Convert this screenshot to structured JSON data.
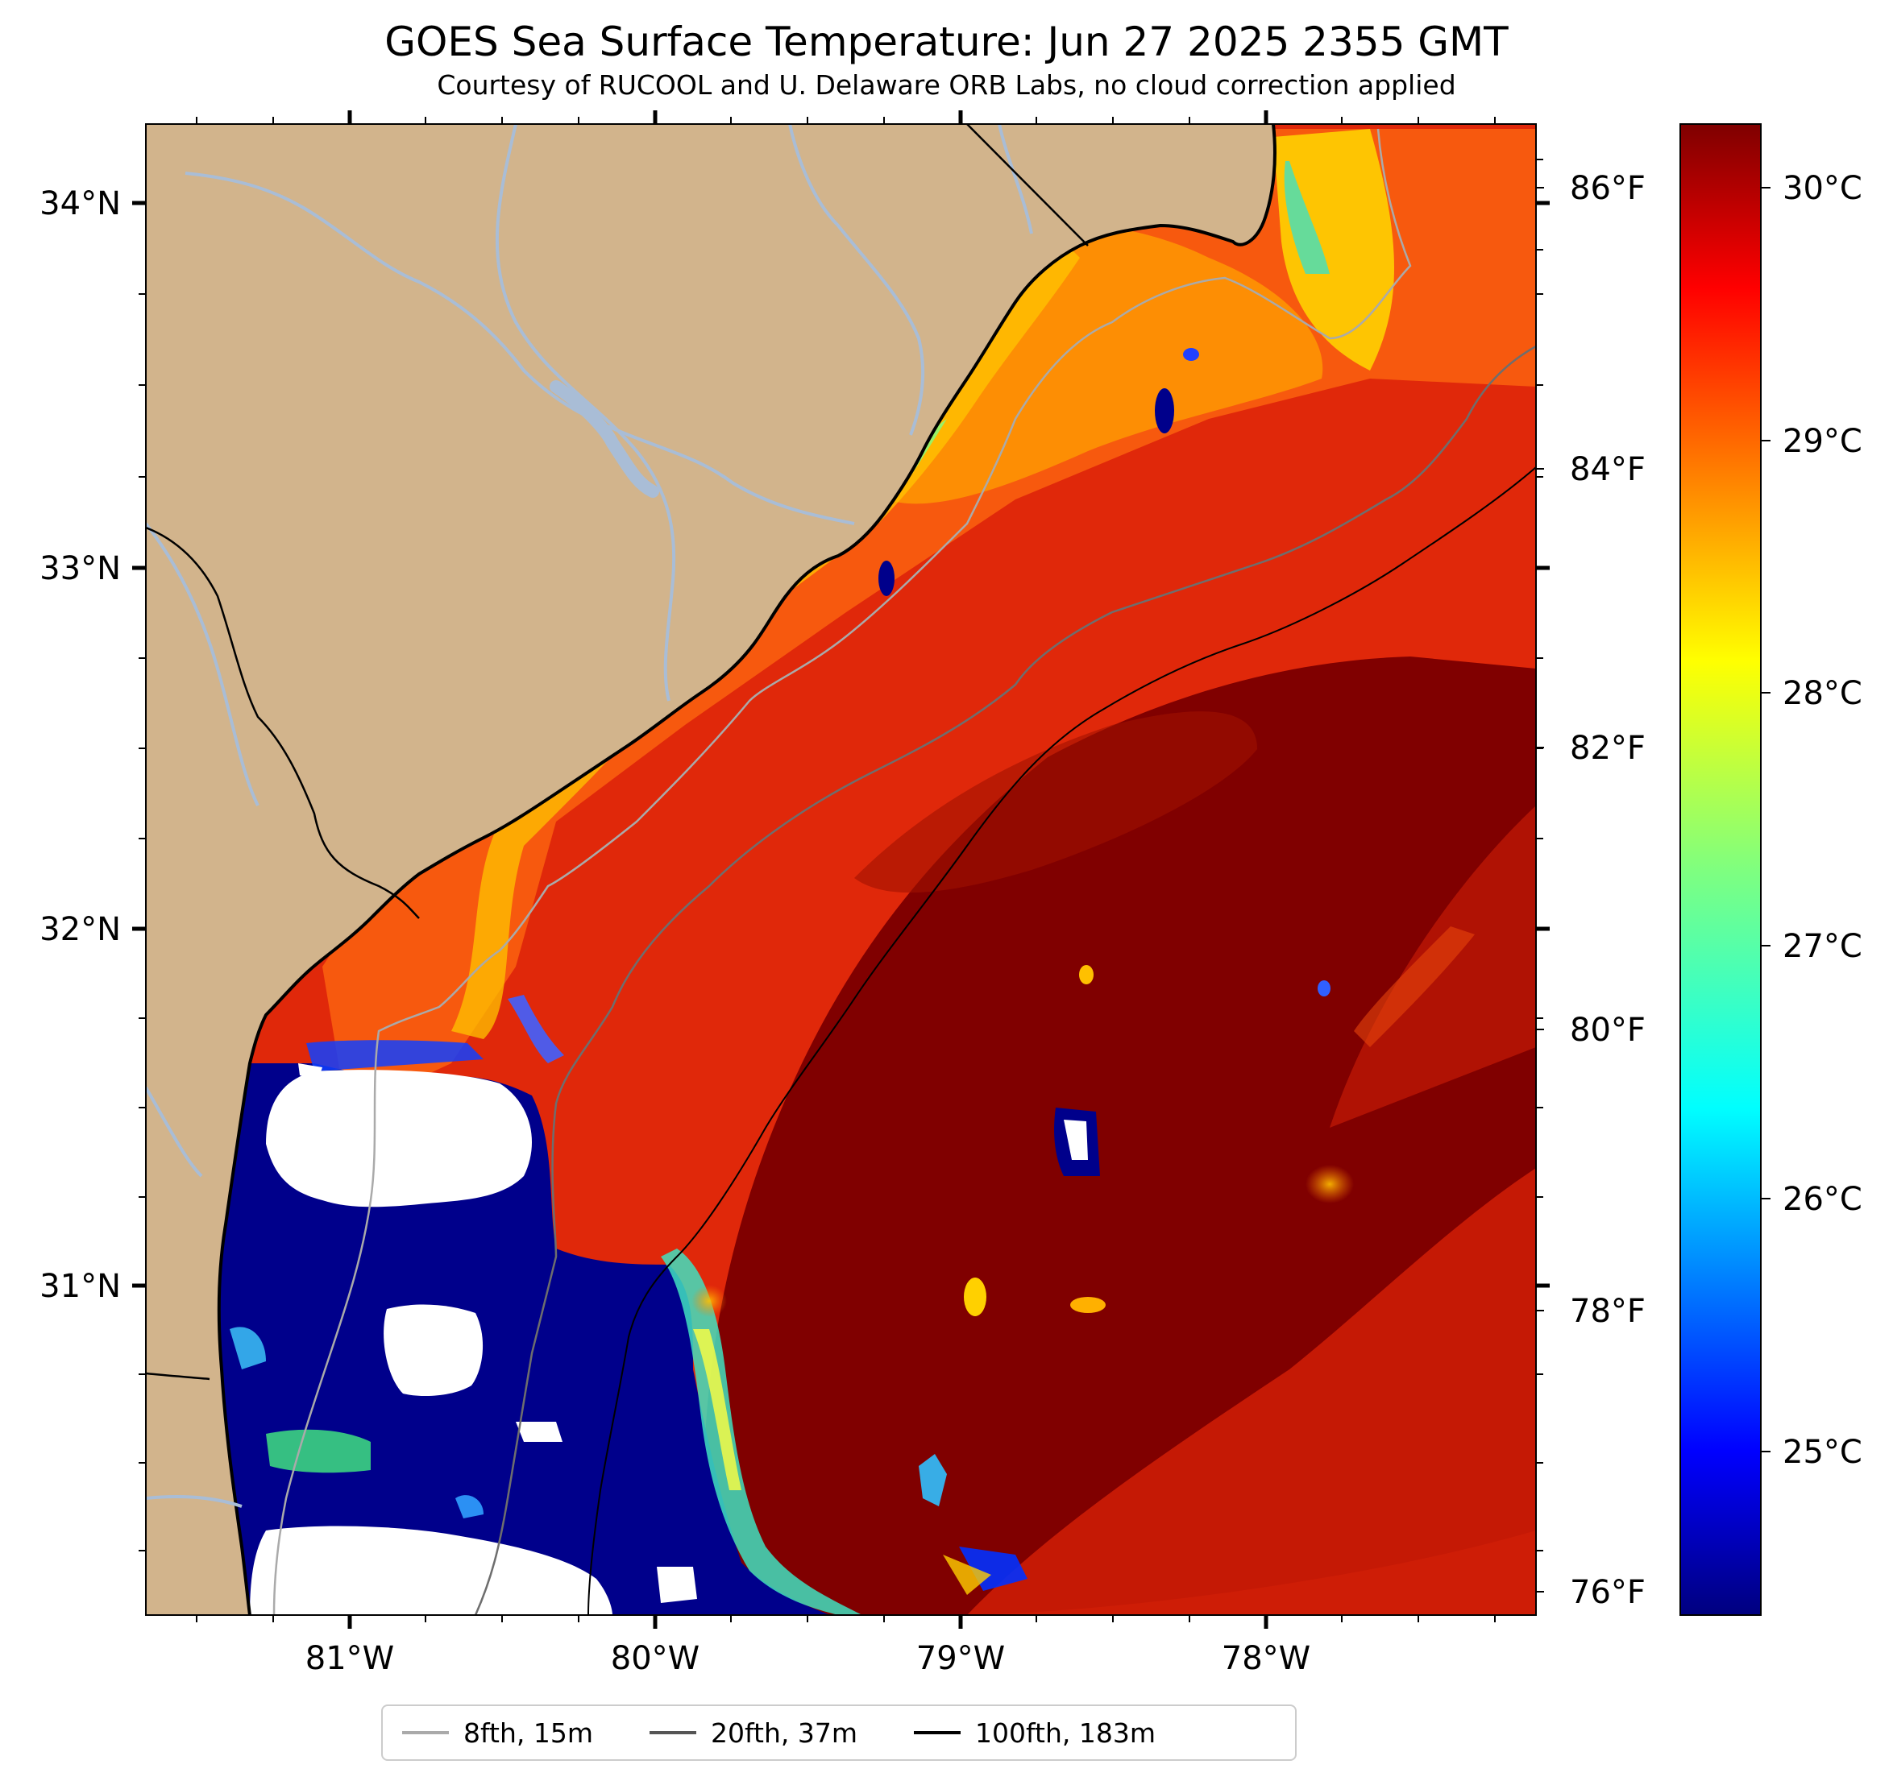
{
  "title": "GOES Sea Surface Temperature: Jun 27 2025 2355 GMT",
  "subtitle": "Courtesy of RUCOOL and U. Delaware ORB Labs, no cloud correction applied",
  "map": {
    "lat_labels": [
      "34°N",
      "33°N",
      "32°N",
      "31°N"
    ],
    "lon_labels": [
      "81°W",
      "80°W",
      "79°W",
      "78°W"
    ],
    "fahrenheit_labels": [
      "86°F",
      "84°F",
      "82°F",
      "80°F",
      "78°F",
      "76°F"
    ],
    "colors": {
      "land": "#d2b48c",
      "river": "#a9bdd6",
      "cloud": "#ffffff",
      "gulf_stream": "#800000",
      "warm_shelf": "#e0280a",
      "cold_upwelling": "#00008b"
    }
  },
  "colorbar": {
    "labels": [
      "30°C",
      "29°C",
      "28°C",
      "27°C",
      "26°C",
      "25°C"
    ],
    "colormap": "jet"
  },
  "legend": {
    "items": [
      {
        "label": "8fth, 15m",
        "color": "#aaaaaa"
      },
      {
        "label": "20fth, 37m",
        "color": "#555555"
      },
      {
        "label": "100fth, 183m",
        "color": "#000000"
      }
    ]
  }
}
